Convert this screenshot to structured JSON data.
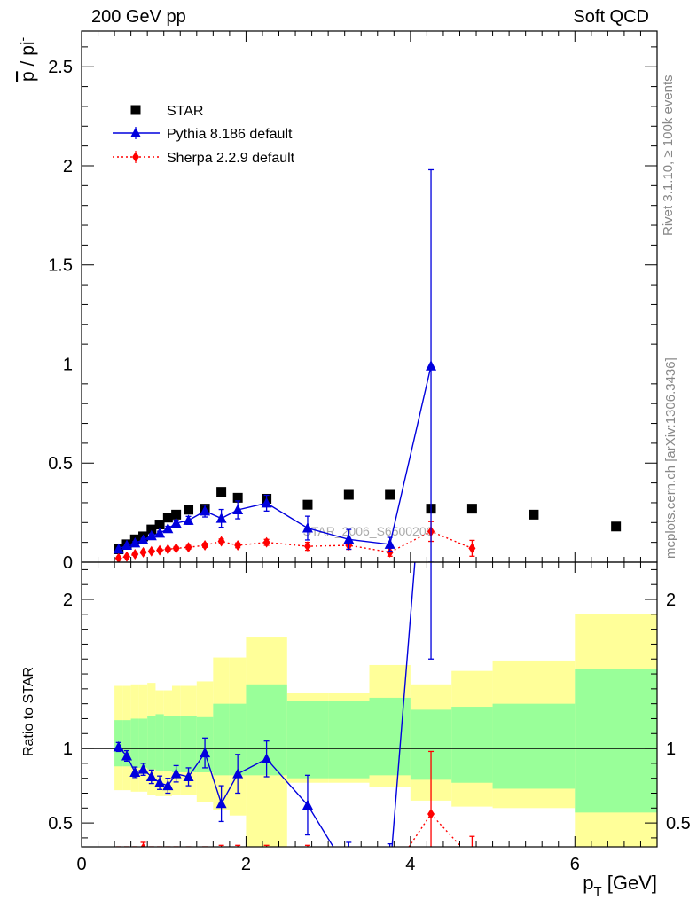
{
  "header": {
    "left": "200 GeV pp",
    "right": "Soft QCD"
  },
  "side_text": {
    "rivet": "Rivet 3.1.10, ≥ 100k events",
    "mcplots": "mcplots.cern.ch [arXiv:1306.3436]"
  },
  "chart_data": [
    {
      "type": "scatter",
      "panel": "main",
      "ylabel_main": "p",
      "ylabel_sep": " / pi",
      "ylabel_sup": "-",
      "ylim": [
        0,
        2.68
      ],
      "yticks": [
        0,
        0.5,
        1,
        1.5,
        2,
        2.5
      ],
      "ytick_labels": [
        "0",
        "0.5",
        "1",
        "1.5",
        "2",
        "2.5"
      ],
      "watermark": "STAR_2006_S6500200",
      "legend_position": "top-left",
      "series": [
        {
          "name": "STAR",
          "color": "#000000",
          "marker": "square",
          "x": [
            0.45,
            0.55,
            0.65,
            0.75,
            0.85,
            0.95,
            1.05,
            1.15,
            1.3,
            1.5,
            1.7,
            1.9,
            2.25,
            2.75,
            3.25,
            3.75,
            4.25,
            4.75,
            5.5,
            6.5
          ],
          "y": [
            0.065,
            0.09,
            0.115,
            0.13,
            0.165,
            0.19,
            0.225,
            0.24,
            0.265,
            0.27,
            0.355,
            0.325,
            0.32,
            0.29,
            0.34,
            0.34,
            0.27,
            0.27,
            0.24,
            0.18
          ]
        },
        {
          "name": "Pythia 8.186 default",
          "color": "#0000dd",
          "marker": "triangle",
          "line": "solid",
          "x": [
            0.45,
            0.55,
            0.65,
            0.75,
            0.85,
            0.95,
            1.05,
            1.15,
            1.3,
            1.5,
            1.7,
            1.9,
            2.25,
            2.75,
            3.25,
            3.75,
            4.25
          ],
          "y": [
            0.066,
            0.085,
            0.097,
            0.112,
            0.133,
            0.146,
            0.169,
            0.197,
            0.211,
            0.258,
            0.221,
            0.264,
            0.298,
            0.172,
            0.115,
            0.09,
            0.99
          ],
          "yerr": [
            0.005,
            0.006,
            0.007,
            0.008,
            0.01,
            0.01,
            0.012,
            0.015,
            0.02,
            0.03,
            0.045,
            0.045,
            0.04,
            0.06,
            0.05,
            0.035,
            0.99
          ]
        },
        {
          "name": "Sherpa 2.2.9 default",
          "color": "#ff0000",
          "marker": "diamond",
          "line": "dotted",
          "x": [
            0.45,
            0.55,
            0.65,
            0.75,
            0.85,
            0.95,
            1.05,
            1.15,
            1.3,
            1.5,
            1.7,
            1.9,
            2.25,
            2.75,
            3.25,
            3.75,
            4.25,
            4.75
          ],
          "y": [
            0.02,
            0.028,
            0.04,
            0.05,
            0.055,
            0.06,
            0.065,
            0.07,
            0.075,
            0.085,
            0.105,
            0.085,
            0.1,
            0.08,
            0.085,
            0.05,
            0.155,
            0.07
          ],
          "yerr": [
            0.003,
            0.004,
            0.005,
            0.006,
            0.006,
            0.006,
            0.007,
            0.008,
            0.009,
            0.01,
            0.012,
            0.012,
            0.015,
            0.02,
            0.02,
            0.02,
            0.05,
            0.04
          ]
        }
      ]
    },
    {
      "type": "line",
      "panel": "ratio",
      "ylabel": "Ratio to STAR",
      "xlabel_main": "p",
      "xlabel_sub": "T",
      "xlabel_unit": " [GeV]",
      "xlim": [
        0,
        7.0
      ],
      "ylim": [
        0.34,
        2.25
      ],
      "xticks": [
        0,
        2,
        4,
        6
      ],
      "xtick_labels": [
        "0",
        "2",
        "4",
        "6"
      ],
      "yticks": [
        0.5,
        1,
        2
      ],
      "ytick_labels": [
        "0.5",
        "1",
        "2"
      ],
      "bands": {
        "bins": [
          [
            0.4,
            0.5
          ],
          [
            0.5,
            0.6
          ],
          [
            0.6,
            0.7
          ],
          [
            0.7,
            0.8
          ],
          [
            0.8,
            0.9
          ],
          [
            0.9,
            1.0
          ],
          [
            1.0,
            1.1
          ],
          [
            1.1,
            1.2
          ],
          [
            1.2,
            1.4
          ],
          [
            1.4,
            1.6
          ],
          [
            1.6,
            1.8
          ],
          [
            1.8,
            2.0
          ],
          [
            2.0,
            2.5
          ],
          [
            2.5,
            3.0
          ],
          [
            3.0,
            3.5
          ],
          [
            3.5,
            4.0
          ],
          [
            4.0,
            4.5
          ],
          [
            4.5,
            5.0
          ],
          [
            5.0,
            6.0
          ],
          [
            6.0,
            7.0
          ]
        ],
        "stat_color": "#99ff99",
        "total_color": "#ffff99",
        "stat_lo": [
          0.88,
          0.88,
          0.87,
          0.87,
          0.86,
          0.85,
          0.85,
          0.84,
          0.84,
          0.84,
          0.82,
          0.82,
          0.82,
          0.8,
          0.8,
          0.82,
          0.79,
          0.77,
          0.73,
          0.57
        ],
        "stat_hi": [
          1.19,
          1.19,
          1.2,
          1.2,
          1.22,
          1.23,
          1.22,
          1.22,
          1.22,
          1.21,
          1.3,
          1.3,
          1.43,
          1.32,
          1.32,
          1.34,
          1.26,
          1.28,
          1.3,
          1.53
        ],
        "total_lo": [
          0.72,
          0.72,
          0.71,
          0.71,
          0.69,
          0.68,
          0.68,
          0.69,
          0.69,
          0.64,
          0.59,
          0.55,
          0.26,
          0.77,
          0.77,
          0.74,
          0.65,
          0.61,
          0.6,
          0.25
        ],
        "total_hi": [
          1.42,
          1.42,
          1.43,
          1.43,
          1.44,
          1.39,
          1.39,
          1.42,
          1.42,
          1.45,
          1.61,
          1.61,
          1.75,
          1.37,
          1.37,
          1.56,
          1.43,
          1.52,
          1.59,
          1.9
        ]
      },
      "series": [
        {
          "name": "Pythia 8.186 default",
          "color": "#0000dd",
          "marker": "triangle",
          "line": "solid",
          "x": [
            0.45,
            0.55,
            0.65,
            0.75,
            0.85,
            0.95,
            1.05,
            1.15,
            1.3,
            1.5,
            1.7,
            1.9,
            2.25,
            2.75,
            3.25,
            3.75,
            4.25
          ],
          "y": [
            1.01,
            0.95,
            0.84,
            0.86,
            0.81,
            0.77,
            0.75,
            0.83,
            0.81,
            0.97,
            0.63,
            0.83,
            0.93,
            0.62,
            0.17,
            0.16,
            3.6
          ],
          "yerr": [
            0.03,
            0.035,
            0.035,
            0.04,
            0.045,
            0.045,
            0.05,
            0.055,
            0.06,
            0.1,
            0.12,
            0.13,
            0.12,
            0.2,
            0.2,
            0.2,
            2.0
          ]
        },
        {
          "name": "Sherpa 2.2.9 default",
          "color": "#ff0000",
          "marker": "diamond",
          "line": "dotted",
          "x": [
            0.45,
            0.55,
            0.65,
            0.75,
            0.85,
            0.95,
            1.05,
            1.15,
            1.3,
            1.5,
            1.7,
            1.9,
            2.25,
            2.75,
            3.25,
            3.75,
            4.25,
            4.75
          ],
          "y": [
            0.3,
            0.3,
            0.3,
            0.33,
            0.3,
            0.3,
            0.3,
            0.3,
            0.3,
            0.3,
            0.3,
            0.3,
            0.3,
            0.28,
            0.25,
            0.15,
            0.56,
            0.26
          ],
          "yerr": [
            0.04,
            0.04,
            0.04,
            0.04,
            0.04,
            0.04,
            0.04,
            0.04,
            0.04,
            0.04,
            0.05,
            0.05,
            0.05,
            0.07,
            0.07,
            0.1,
            0.42,
            0.15
          ]
        }
      ]
    }
  ]
}
